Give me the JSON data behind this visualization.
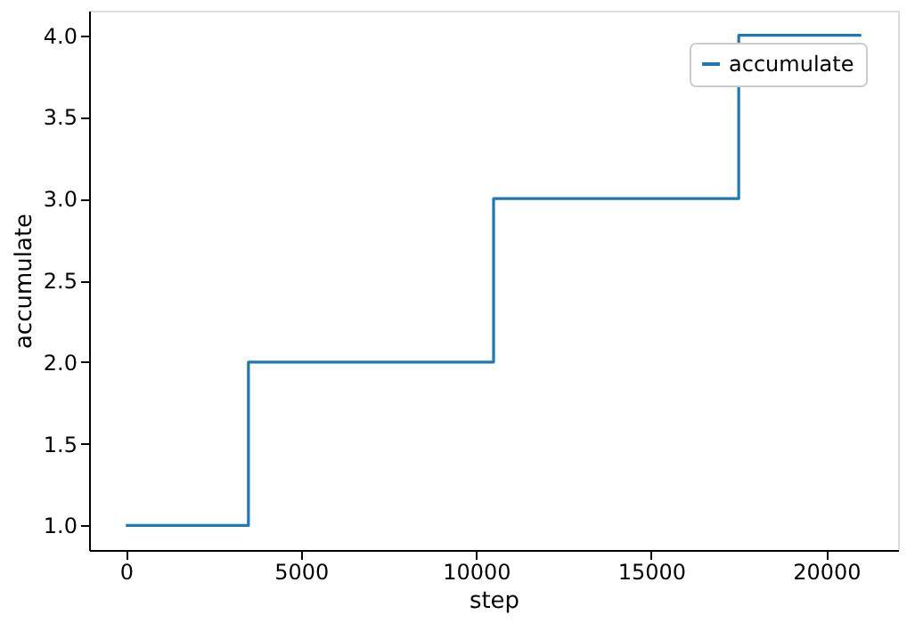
{
  "chart_data": {
    "type": "step",
    "xlabel": "step",
    "ylabel": "accumulate",
    "x": [
      0,
      3500,
      10500,
      17500,
      21000
    ],
    "series": [
      {
        "name": "accumulate",
        "color": "#1f77b4",
        "values": [
          1,
          2,
          3,
          4,
          4
        ]
      }
    ],
    "xlim": [
      -1050,
      22050
    ],
    "xticks": [
      0,
      5000,
      10000,
      15000,
      20000
    ],
    "ylim": [
      0.85,
      4.15
    ],
    "yticks": [
      {
        "value": 1,
        "label": "1.0"
      },
      1.5,
      {
        "value": 2,
        "label": "2.0"
      },
      2.5,
      {
        "value": 3,
        "label": "3.0"
      },
      3.5,
      {
        "value": 4,
        "label": "4.0"
      }
    ],
    "grid": false,
    "legend": "top right",
    "line_style": "solid",
    "marker": "none"
  }
}
